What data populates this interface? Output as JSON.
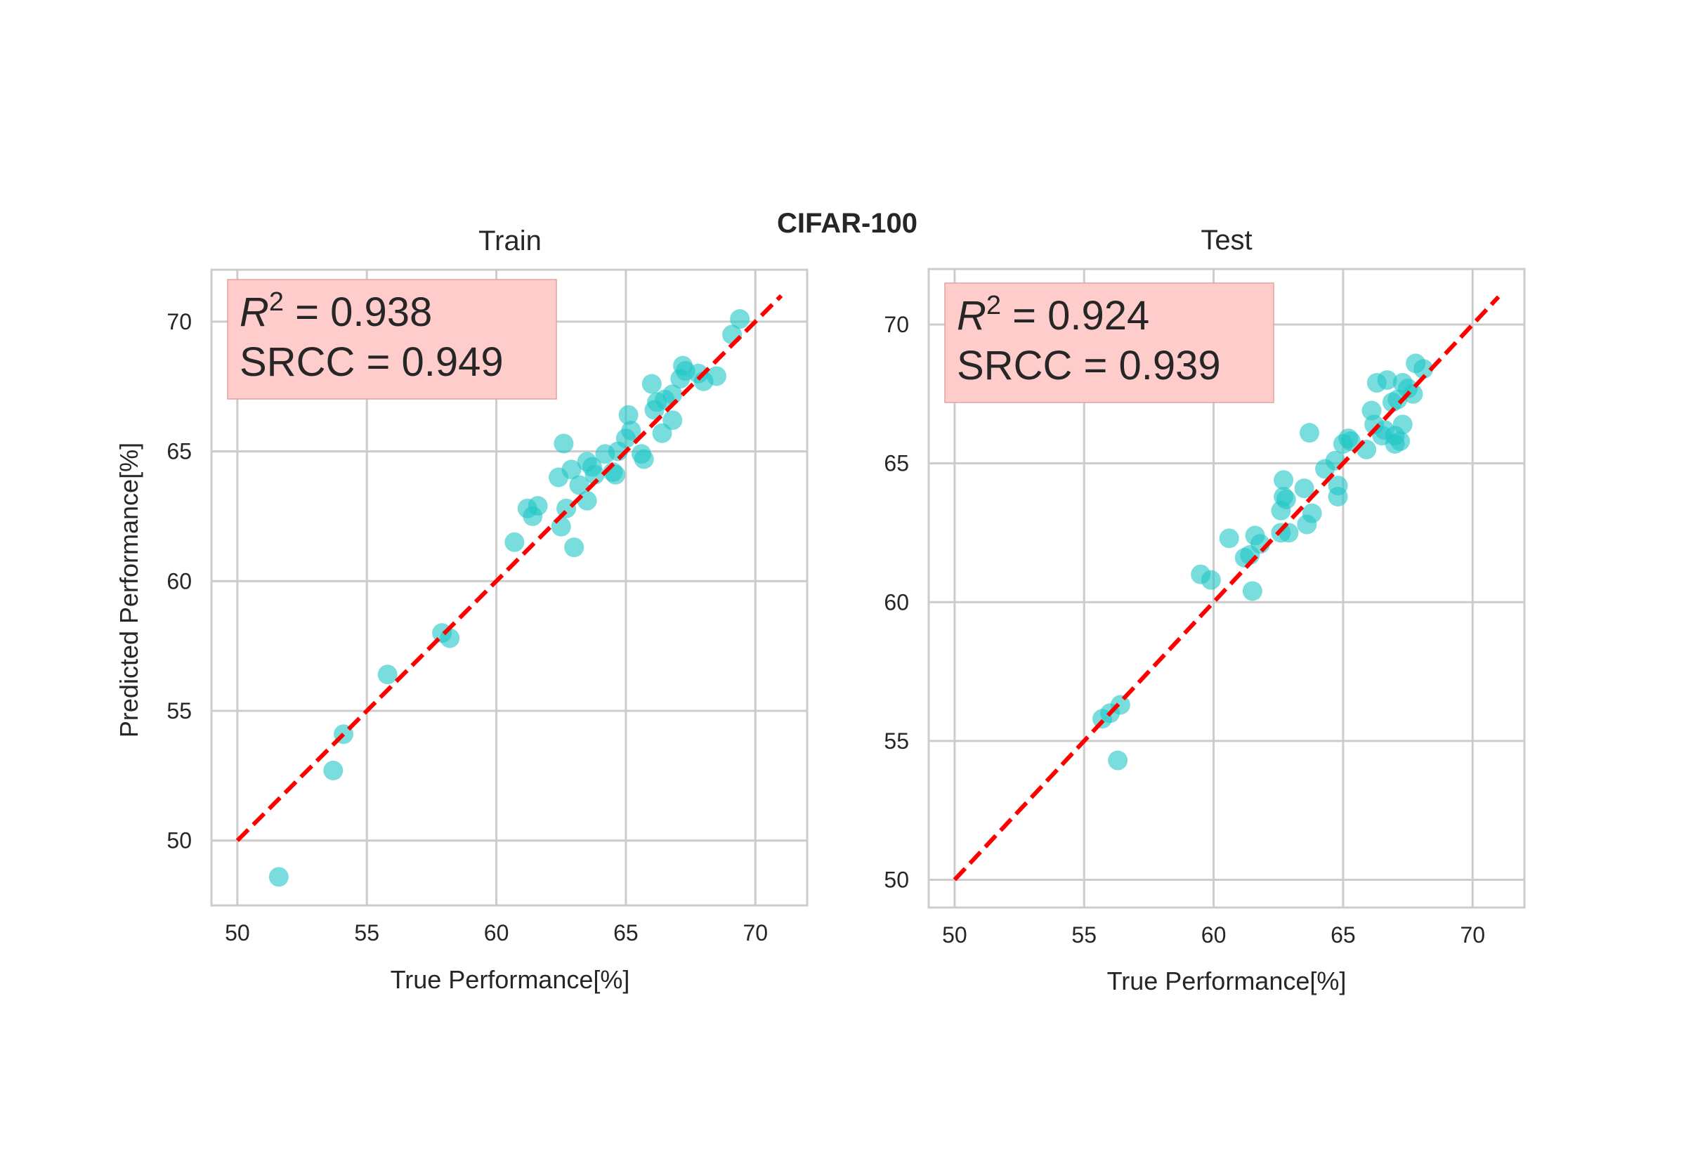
{
  "figure": {
    "title": "CIFAR-100"
  },
  "colors": {
    "points": "#1fc7c7",
    "reference_line": "#ff0000",
    "stat_box": "#ffcccc",
    "grid": "#cccccc"
  },
  "chart_data": [
    {
      "type": "scatter",
      "title": "Train",
      "xlabel": "True Performance[%]",
      "ylabel": "Predicted Performance[%]",
      "xlim": [
        49,
        72
      ],
      "ylim": [
        47.5,
        72
      ],
      "xticks": [
        50,
        55,
        60,
        65,
        70
      ],
      "yticks": [
        50,
        55,
        60,
        65,
        70
      ],
      "grid": true,
      "reference_line": {
        "from": [
          50,
          50
        ],
        "to": [
          71,
          71
        ],
        "style": "dashed"
      },
      "stats": {
        "r2_label": "R",
        "r2_sup": "2",
        "r2_rest": " = 0.938",
        "srcc": "SRCC = 0.949"
      },
      "points": [
        [
          51.6,
          48.6
        ],
        [
          53.7,
          52.7
        ],
        [
          54.1,
          54.1
        ],
        [
          55.8,
          56.4
        ],
        [
          57.9,
          58.0
        ],
        [
          58.2,
          57.8
        ],
        [
          60.7,
          61.5
        ],
        [
          61.2,
          62.8
        ],
        [
          61.4,
          62.5
        ],
        [
          61.6,
          62.9
        ],
        [
          62.4,
          64.0
        ],
        [
          62.5,
          62.1
        ],
        [
          62.7,
          62.8
        ],
        [
          62.6,
          65.3
        ],
        [
          62.9,
          64.3
        ],
        [
          63.0,
          61.3
        ],
        [
          63.2,
          63.7
        ],
        [
          63.5,
          63.1
        ],
        [
          63.7,
          64.4
        ],
        [
          63.8,
          64.1
        ],
        [
          64.2,
          64.9
        ],
        [
          64.5,
          64.2
        ],
        [
          64.7,
          65.0
        ],
        [
          65.1,
          66.4
        ],
        [
          65.0,
          65.5
        ],
        [
          65.2,
          65.8
        ],
        [
          65.6,
          64.9
        ],
        [
          65.7,
          64.7
        ],
        [
          66.0,
          67.6
        ],
        [
          66.1,
          66.6
        ],
        [
          66.4,
          65.7
        ],
        [
          66.5,
          67.0
        ],
        [
          66.8,
          67.2
        ],
        [
          66.8,
          66.2
        ],
        [
          67.2,
          68.3
        ],
        [
          67.3,
          68.1
        ],
        [
          67.8,
          68.0
        ],
        [
          68.0,
          67.7
        ],
        [
          68.5,
          67.9
        ],
        [
          69.1,
          69.5
        ],
        [
          69.4,
          70.1
        ],
        [
          64.6,
          64.1
        ],
        [
          63.5,
          64.6
        ],
        [
          66.2,
          66.9
        ],
        [
          67.1,
          67.8
        ]
      ]
    },
    {
      "type": "scatter",
      "title": "Test",
      "xlabel": "True Performance[%]",
      "ylabel": "",
      "xlim": [
        49,
        72
      ],
      "ylim": [
        49,
        72
      ],
      "xticks": [
        50,
        55,
        60,
        65,
        70
      ],
      "yticks": [
        50,
        55,
        60,
        65,
        70
      ],
      "grid": true,
      "reference_line": {
        "from": [
          50,
          50
        ],
        "to": [
          71,
          71
        ],
        "style": "dashed"
      },
      "stats": {
        "r2_label": "R",
        "r2_sup": "2",
        "r2_rest": " = 0.924",
        "srcc": "SRCC = 0.939"
      },
      "points": [
        [
          55.7,
          55.8
        ],
        [
          56.0,
          56.0
        ],
        [
          56.4,
          56.3
        ],
        [
          56.3,
          54.3
        ],
        [
          59.5,
          61.0
        ],
        [
          59.9,
          60.8
        ],
        [
          60.6,
          62.3
        ],
        [
          61.2,
          61.6
        ],
        [
          61.4,
          61.7
        ],
        [
          61.6,
          62.4
        ],
        [
          61.8,
          62.1
        ],
        [
          61.5,
          60.4
        ],
        [
          62.6,
          63.3
        ],
        [
          62.7,
          64.4
        ],
        [
          62.8,
          63.7
        ],
        [
          62.6,
          62.5
        ],
        [
          62.9,
          62.5
        ],
        [
          63.5,
          64.1
        ],
        [
          63.6,
          62.8
        ],
        [
          63.7,
          66.1
        ],
        [
          63.8,
          63.2
        ],
        [
          64.3,
          64.8
        ],
        [
          64.7,
          65.1
        ],
        [
          64.8,
          64.2
        ],
        [
          64.8,
          63.8
        ],
        [
          65.0,
          65.7
        ],
        [
          65.2,
          65.9
        ],
        [
          65.3,
          65.8
        ],
        [
          65.9,
          65.5
        ],
        [
          66.1,
          66.9
        ],
        [
          66.2,
          66.4
        ],
        [
          66.3,
          67.9
        ],
        [
          66.5,
          66.0
        ],
        [
          66.7,
          68.0
        ],
        [
          66.9,
          67.2
        ],
        [
          67.0,
          66.0
        ],
        [
          67.0,
          65.7
        ],
        [
          67.1,
          67.3
        ],
        [
          67.3,
          66.4
        ],
        [
          67.3,
          67.9
        ],
        [
          67.2,
          65.8
        ],
        [
          67.5,
          67.7
        ],
        [
          67.7,
          67.5
        ],
        [
          67.8,
          68.6
        ],
        [
          68.1,
          68.4
        ],
        [
          62.7,
          63.8
        ],
        [
          66.6,
          66.2
        ]
      ]
    }
  ]
}
